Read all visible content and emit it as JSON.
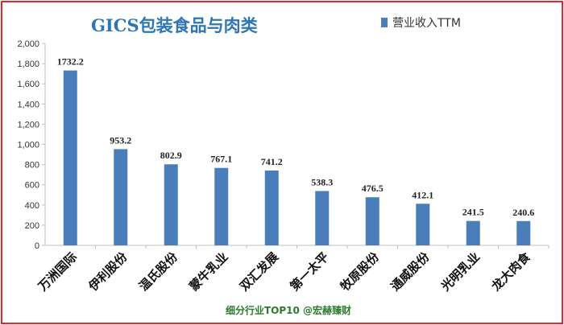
{
  "chart_data": {
    "type": "bar",
    "title": "GICS包装食品与肉类",
    "categories": [
      "万洲国际",
      "伊利股份",
      "温氏股份",
      "蒙牛乳业",
      "双汇发展",
      "第一太平",
      "牧原股份",
      "通威股份",
      "光明乳业",
      "龙大肉食"
    ],
    "series": [
      {
        "name": "营业收入TTM",
        "values": [
          1732.2,
          953.2,
          802.9,
          767.1,
          741.2,
          538.3,
          476.5,
          412.1,
          241.5,
          240.6
        ],
        "labels": [
          "1732.2",
          "953.2",
          "802.9",
          "767.1",
          "741.2",
          "538.3",
          "476.5",
          "412.1",
          "241.5",
          "240.6"
        ]
      }
    ],
    "ylim": [
      0,
      2000
    ],
    "yticks": [
      0,
      200,
      400,
      600,
      800,
      1000,
      1200,
      1400,
      1600,
      1800,
      2000
    ],
    "ytick_labels": [
      "0",
      "200",
      "400",
      "600",
      "800",
      "1,000",
      "1,200",
      "1,400",
      "1,600",
      "1,800",
      "2,000"
    ],
    "xlabel": "",
    "ylabel": "",
    "grid": false,
    "legend_position": "top-right",
    "bar_color": "#4a7ebb",
    "footer": "细分行业TOP10 @宏赫臻财"
  },
  "colors": {
    "frame_border": "#e8232a",
    "title": "#2e75b6",
    "footer": "#2d7a2d",
    "axis": "#bfbfbf"
  }
}
